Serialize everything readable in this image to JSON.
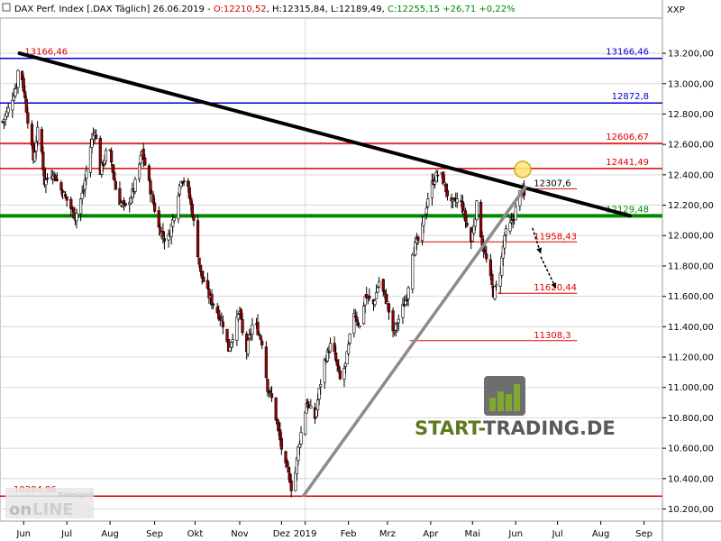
{
  "header": {
    "icon": "square-icon",
    "label": "DAX Perf. Index [.DAX",
    "timeframe": "Täglich]",
    "date": "26.06.2019",
    "open": "O:12210,52",
    "high": "H:12315,84",
    "low": "L:12189,49",
    "close": "C:12255,15",
    "change": "+26,71",
    "change_pct": "+0,22%",
    "symbol": "XXP"
  },
  "branding": {
    "site_text_1": "START-",
    "site_text_2": "TRADING.DE",
    "platform_logo_icon": "tradesignal-online-logo"
  },
  "colors": {
    "candle_up": "#ffffff",
    "candle_down": "#a00000",
    "resistance_red": "#e00000",
    "blue_level": "#0000cc",
    "green_level": "#008800",
    "trend_black": "#000000",
    "trend_gray": "#8c8c8c",
    "site_green": "#5a7a1e",
    "site_gray": "#5a5a5a"
  },
  "chart_data": {
    "type": "candlestick",
    "ylim": [
      10120,
      13420
    ],
    "y_ticks": [
      "13.200,00",
      "13.000,00",
      "12.800,00",
      "12.600,00",
      "12.400,00",
      "12.200,00",
      "12.000,00",
      "11.800,00",
      "11.600,00",
      "11.400,00",
      "11.200,00",
      "11.000,00",
      "10.800,00",
      "10.600,00",
      "10.400,00",
      "10.200,00"
    ],
    "x_labels": [
      "Jun",
      "Jul",
      "Aug",
      "Sep",
      "Okt",
      "Nov",
      "Dez",
      "2019",
      "Feb",
      "Mrz",
      "Apr",
      "Mai",
      "Jun",
      "Jul",
      "Aug",
      "Sep"
    ],
    "x_label_days": [
      15,
      46,
      77,
      109,
      138,
      170,
      200,
      217,
      248,
      276,
      307,
      337,
      368,
      398,
      429,
      460
    ],
    "start_date": "2018-06-01",
    "last_close": 12255.15,
    "anchors": [
      [
        0,
        12750
      ],
      [
        5,
        12850
      ],
      [
        10,
        13000
      ],
      [
        12,
        13166.46
      ],
      [
        16,
        12900
      ],
      [
        22,
        12500
      ],
      [
        26,
        12750
      ],
      [
        30,
        12350
      ],
      [
        36,
        12420
      ],
      [
        42,
        12300
      ],
      [
        48,
        12200
      ],
      [
        52,
        12120
      ],
      [
        58,
        12300
      ],
      [
        62,
        12550
      ],
      [
        66,
        12700
      ],
      [
        70,
        12420
      ],
      [
        76,
        12600
      ],
      [
        82,
        12250
      ],
      [
        88,
        12180
      ],
      [
        94,
        12300
      ],
      [
        100,
        12550
      ],
      [
        106,
        12300
      ],
      [
        112,
        12050
      ],
      [
        118,
        11950
      ],
      [
        122,
        12100
      ],
      [
        128,
        12380
      ],
      [
        132,
        12350
      ],
      [
        136,
        12150
      ],
      [
        142,
        11750
      ],
      [
        148,
        11600
      ],
      [
        154,
        11500
      ],
      [
        158,
        11420
      ],
      [
        162,
        11250
      ],
      [
        170,
        11500
      ],
      [
        174,
        11200
      ],
      [
        180,
        11450
      ],
      [
        186,
        11300
      ],
      [
        190,
        11000
      ],
      [
        194,
        10900
      ],
      [
        198,
        10700
      ],
      [
        202,
        10500
      ],
      [
        206,
        10400
      ],
      [
        208,
        10284.96
      ],
      [
        212,
        10600
      ],
      [
        218,
        10900
      ],
      [
        224,
        10800
      ],
      [
        230,
        11150
      ],
      [
        236,
        11300
      ],
      [
        242,
        11050
      ],
      [
        246,
        11150
      ],
      [
        252,
        11500
      ],
      [
        256,
        11400
      ],
      [
        260,
        11600
      ],
      [
        266,
        11550
      ],
      [
        270,
        11700
      ],
      [
        276,
        11550
      ],
      [
        280,
        11350
      ],
      [
        284,
        11450
      ],
      [
        290,
        11600
      ],
      [
        294,
        11900
      ],
      [
        300,
        12000
      ],
      [
        306,
        12300
      ],
      [
        310,
        12380
      ],
      [
        314,
        12420
      ],
      [
        318,
        12300
      ],
      [
        322,
        12200
      ],
      [
        328,
        12250
      ],
      [
        332,
        12100
      ],
      [
        336,
        11958.43
      ],
      [
        340,
        12200
      ],
      [
        344,
        11950
      ],
      [
        348,
        11800
      ],
      [
        352,
        11620.44
      ],
      [
        356,
        11700
      ],
      [
        360,
        12000
      ],
      [
        366,
        12100
      ],
      [
        370,
        12250
      ],
      [
        372,
        12307.6
      ],
      [
        374,
        12255
      ]
    ],
    "levels": [
      {
        "value": 13166.46,
        "label": "13166,46",
        "color": "blue",
        "left_label": "13166,46",
        "left_day": 8
      },
      {
        "value": 12872.8,
        "label": "12872,8",
        "color": "blue"
      },
      {
        "value": 12606.67,
        "label": "12606,67",
        "color": "red"
      },
      {
        "value": 12441.49,
        "label": "12441,49",
        "color": "red"
      },
      {
        "value": 12129.48,
        "label": "12129,48",
        "color": "green"
      },
      {
        "value": 10284.96,
        "label": "",
        "color": "red",
        "left_label": "10284,96",
        "left_day": 0
      }
    ],
    "short_levels": [
      {
        "value": 12307.6,
        "label": "12307,6",
        "day_from": 372,
        "day_to": 412
      },
      {
        "value": 11958.43,
        "label": "11958,43",
        "day_from": 295,
        "day_to": 412
      },
      {
        "value": 11620.44,
        "label": "11620,44",
        "day_from": 355,
        "day_to": 412
      },
      {
        "value": 11308.3,
        "label": "11308,3",
        "day_from": 292,
        "day_to": 412
      }
    ],
    "trendlines": [
      {
        "name": "downtrend",
        "color": "black",
        "from": [
          12,
          13200
        ],
        "to": [
          450,
          12130
        ]
      },
      {
        "name": "uptrend",
        "color": "gray",
        "from": [
          216,
          10290
        ],
        "to": [
          375,
          12320
        ]
      }
    ],
    "highlight": {
      "day": 373,
      "value": 12441.49
    },
    "arrows": [
      {
        "from": [
          380,
          12050
        ],
        "to": [
          386,
          11880
        ]
      },
      {
        "from": [
          386,
          11860
        ],
        "to": [
          397,
          11650
        ]
      }
    ]
  }
}
